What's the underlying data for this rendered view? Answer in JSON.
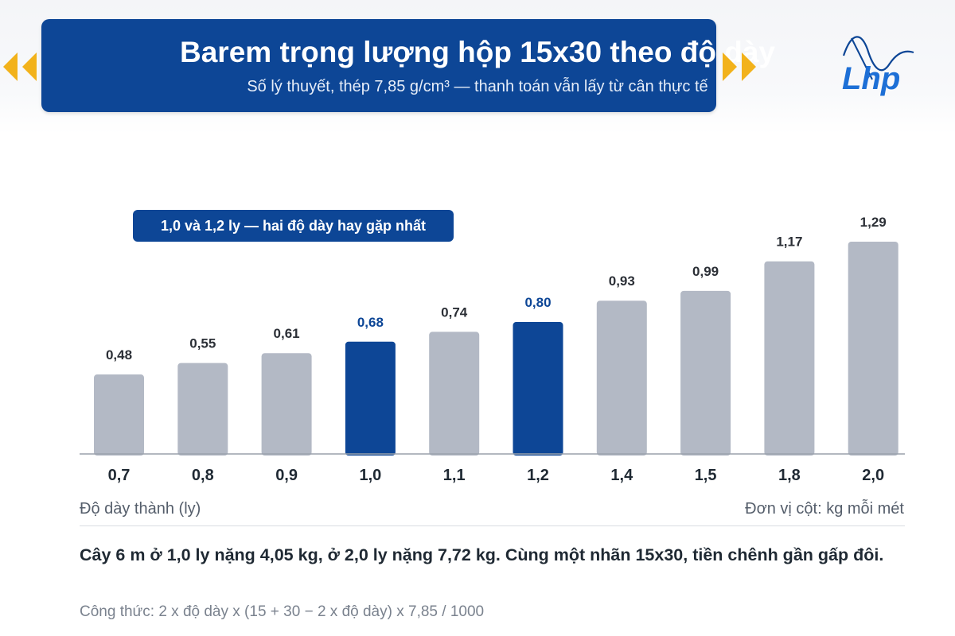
{
  "header": {
    "title": "Barem trọng lượng hộp 15x30 theo độ dày",
    "subtitle": "Số lý thuyết, thép 7,85 g/cm³ — thanh toán vẫn lấy từ cân thực tế"
  },
  "logo": {
    "text": "Lhp",
    "icon": "lhp-logo-icon"
  },
  "nav": {
    "prev_icon": "chevron-left-double-icon",
    "next_icon": "chevron-right-double-icon"
  },
  "colors": {
    "brand": "#0d4696",
    "bar_default": "#b3b9c5",
    "bar_highlight": "#0d4696",
    "arrow": "#f2b21b"
  },
  "chart_data": {
    "type": "bar",
    "categories": [
      "0,7",
      "0,8",
      "0,9",
      "1,0",
      "1,1",
      "1,2",
      "1,4",
      "1,5",
      "1,8",
      "2,0"
    ],
    "values": [
      0.48,
      0.55,
      0.61,
      0.68,
      0.74,
      0.8,
      0.93,
      0.99,
      1.17,
      1.29
    ],
    "value_labels": [
      "0,48",
      "0,55",
      "0,61",
      "0,68",
      "0,74",
      "0,80",
      "0,93",
      "0,99",
      "1,17",
      "1,29"
    ],
    "highlighted": [
      "1,0",
      "1,2"
    ],
    "xlabel": "Độ dày thành (ly)",
    "ylabel": "Đơn vị cột: kg mỗi mét",
    "ylim": [
      0,
      1.29
    ],
    "grid": false,
    "annotation": "1,0 và 1,2 ly — hai độ dày hay gặp nhất"
  },
  "footer": {
    "note": "Cây 6 m ở 1,0 ly nặng 4,05 kg, ở 2,0 ly nặng 7,72 kg. Cùng một nhãn 15x30, tiền chênh gần gấp đôi.",
    "formula": "Công thức: 2 x độ dày x (15 + 30 − 2 x độ dày) x 7,85 / 1000"
  }
}
